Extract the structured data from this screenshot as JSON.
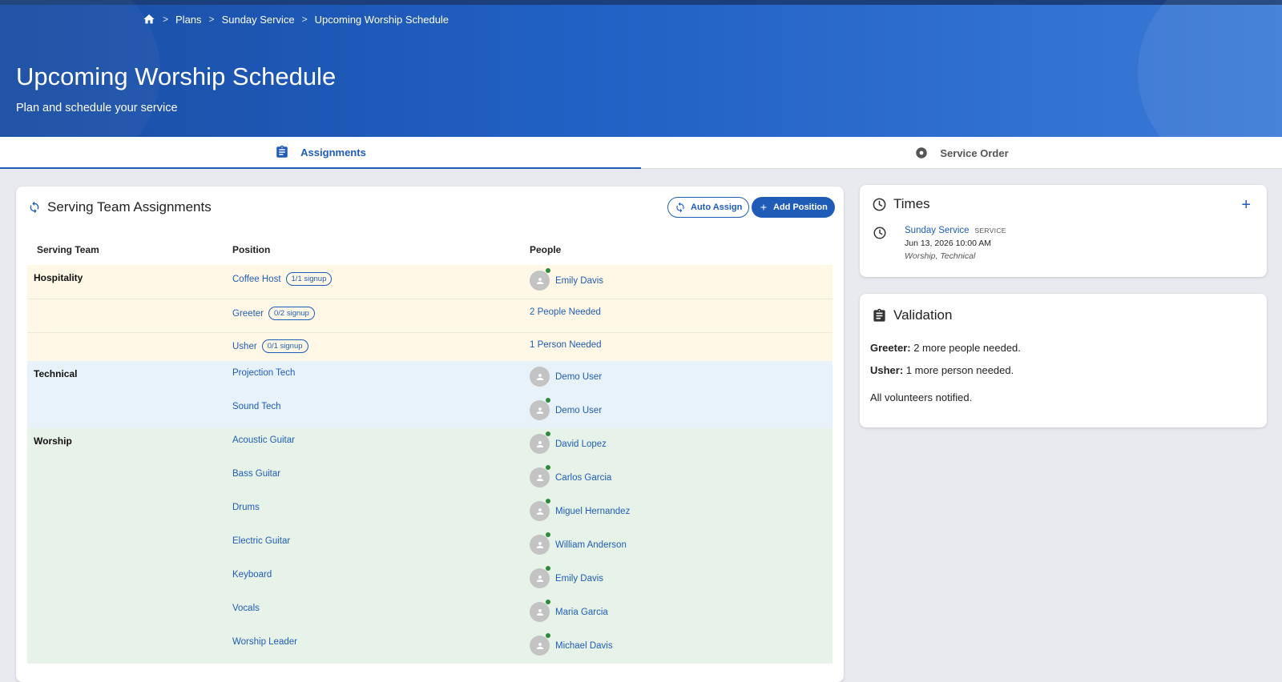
{
  "breadcrumb": {
    "items": [
      "Plans",
      "Sunday Service",
      "Upcoming Worship Schedule"
    ]
  },
  "header": {
    "title": "Upcoming Worship Schedule",
    "subtitle": "Plan and schedule your service"
  },
  "tabs": [
    {
      "label": "Assignments",
      "icon": "clipboard-icon",
      "active": true
    },
    {
      "label": "Service Order",
      "icon": "record-icon",
      "active": false
    }
  ],
  "assignments": {
    "title": "Serving Team Assignments",
    "auto_assign_label": "Auto Assign",
    "add_position_label": "Add Position",
    "columns": [
      "Serving Team",
      "Position",
      "People"
    ],
    "rows": [
      {
        "team": "Hospitality",
        "position": "Coffee Host",
        "badge": "1/1 signup",
        "person": "Emily Davis",
        "needed": "",
        "status": "online"
      },
      {
        "team": "",
        "position": "Greeter",
        "badge": "0/2 signup",
        "person": "",
        "needed": "2 People Needed"
      },
      {
        "team": "",
        "position": "Usher",
        "badge": "0/1 signup",
        "person": "",
        "needed": "1 Person Needed"
      },
      {
        "team": "Technical",
        "position": "Projection Tech",
        "badge": "",
        "person": "Demo User",
        "needed": "",
        "status": "none"
      },
      {
        "team": "",
        "position": "Sound Tech",
        "badge": "",
        "person": "Demo User",
        "needed": "",
        "status": "online"
      },
      {
        "team": "Worship",
        "position": "Acoustic Guitar",
        "badge": "",
        "person": "David Lopez",
        "needed": "",
        "status": "online"
      },
      {
        "team": "",
        "position": "Bass Guitar",
        "badge": "",
        "person": "Carlos Garcia",
        "needed": "",
        "status": "online"
      },
      {
        "team": "",
        "position": "Drums",
        "badge": "",
        "person": "Miguel Hernandez",
        "needed": "",
        "status": "online"
      },
      {
        "team": "",
        "position": "Electric Guitar",
        "badge": "",
        "person": "William Anderson",
        "needed": "",
        "status": "online"
      },
      {
        "team": "",
        "position": "Keyboard",
        "badge": "",
        "person": "Emily Davis",
        "needed": "",
        "status": "online"
      },
      {
        "team": "",
        "position": "Vocals",
        "badge": "",
        "person": "Maria Garcia",
        "needed": "",
        "status": "online"
      },
      {
        "team": "",
        "position": "Worship Leader",
        "badge": "",
        "person": "Michael Davis",
        "needed": "",
        "status": "online"
      }
    ]
  },
  "times": {
    "title": "Times",
    "item": {
      "name": "Sunday Service",
      "tag": "SERVICE",
      "datetime": "Jun 13, 2026 10:00 AM",
      "teams": "Worship, Technical"
    }
  },
  "validation": {
    "title": "Validation",
    "lines": [
      {
        "label": "Greeter:",
        "text": " 2 more people needed."
      },
      {
        "label": "Usher:",
        "text": " 1 more person needed."
      },
      {
        "label": "",
        "text": "All volunteers notified."
      }
    ]
  },
  "colors": {
    "brand": "#1f5cb8",
    "hospitality": "#fff8e6",
    "technical": "#e7f2fb",
    "worship": "#e7f3e8",
    "online": "#2e8b3a"
  }
}
